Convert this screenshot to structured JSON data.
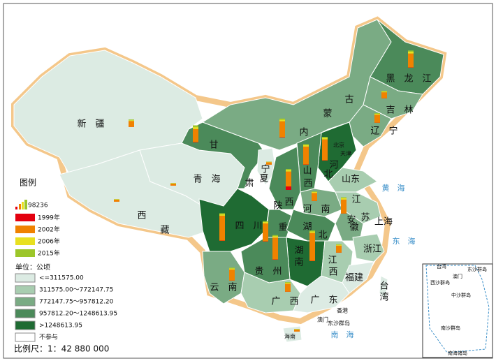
{
  "legend": {
    "title": "图例",
    "bar_scale": {
      "value": 98236,
      "label": "98236"
    },
    "years": [
      "1999年",
      "2002年",
      "2006年",
      "2015年"
    ],
    "unit": "单位：公顷",
    "classes": [
      "<=311575.00",
      "311575.00～772147.75",
      "772147.75～957812.20",
      "957812.20～1248613.95",
      ">1248613.95",
      "不参与"
    ]
  },
  "scale_text": "比例尺：1：42 880 000",
  "map_labels": [
    "新　疆",
    "西",
    "藏",
    "青　海",
    "甘",
    "肃",
    "内",
    "蒙",
    "古",
    "黑　龙　江",
    "吉　林",
    "辽　宁",
    "宁",
    "夏",
    "山",
    "西",
    "陕",
    "西",
    "河",
    "北",
    "山东",
    "河　南",
    "江",
    "苏",
    "安",
    "徽",
    "上海",
    "四　川",
    "重",
    "湖",
    "北",
    "湖",
    "南",
    "贵　州",
    "云　南",
    "广　西",
    "广　东",
    "江",
    "西",
    "浙江",
    "福建",
    "台",
    "湾",
    "海南",
    "香港",
    "澳门",
    "东沙群岛",
    "天津",
    "北京"
  ],
  "sea_labels": [
    "黄　海",
    "东　海",
    "南　海"
  ],
  "inset_labels": [
    "台湾",
    "澳门",
    "东沙群岛",
    "西沙群岛",
    "中沙群岛",
    "南沙群岛",
    "南海诸岛"
  ],
  "regions": [
    {
      "name": "新疆",
      "values": [
        2000,
        60000,
        6000,
        8000
      ]
    },
    {
      "name": "西藏",
      "values": [
        1000,
        20000,
        3000,
        3000
      ]
    },
    {
      "name": "青海",
      "values": [
        1000,
        20000,
        3000,
        3000
      ]
    },
    {
      "name": "甘肃",
      "values": [
        4000,
        130000,
        20000,
        18000
      ]
    },
    {
      "name": "内蒙古",
      "values": [
        4000,
        160000,
        15000,
        12000
      ]
    },
    {
      "name": "黑龙江",
      "values": [
        3000,
        140000,
        20000,
        10000
      ]
    },
    {
      "name": "吉林",
      "values": [
        2000,
        60000,
        8000,
        6000
      ]
    },
    {
      "name": "辽宁",
      "values": [
        2000,
        80000,
        10000,
        6000
      ]
    },
    {
      "name": "河北",
      "values": [
        3000,
        210000,
        15000,
        10000
      ]
    },
    {
      "name": "山西",
      "values": [
        3000,
        180000,
        15000,
        10000
      ]
    },
    {
      "name": "宁夏",
      "values": [
        1000,
        25000,
        3000,
        3000
      ]
    },
    {
      "name": "陕西",
      "values": [
        35000,
        150000,
        15000,
        10000
      ]
    },
    {
      "name": "河南",
      "values": [
        2000,
        80000,
        10000,
        6000
      ]
    },
    {
      "name": "安徽",
      "values": [
        2000,
        140000,
        15000,
        8000
      ]
    },
    {
      "name": "四川",
      "values": [
        3000,
        250000,
        15000,
        10000
      ]
    },
    {
      "name": "重庆",
      "values": [
        3000,
        180000,
        15000,
        8000
      ]
    },
    {
      "name": "湖北",
      "values": [
        3000,
        280000,
        15000,
        10000
      ]
    },
    {
      "name": "贵州",
      "values": [
        3000,
        220000,
        15000,
        10000
      ]
    },
    {
      "name": "江西",
      "values": [
        2000,
        70000,
        8000,
        6000
      ]
    },
    {
      "name": "云南",
      "values": [
        2000,
        110000,
        12000,
        8000
      ]
    },
    {
      "name": "广西",
      "values": [
        2000,
        80000,
        10000,
        6000
      ]
    },
    {
      "name": "海南",
      "values": [
        1000,
        20000,
        3000,
        3000
      ]
    }
  ]
}
